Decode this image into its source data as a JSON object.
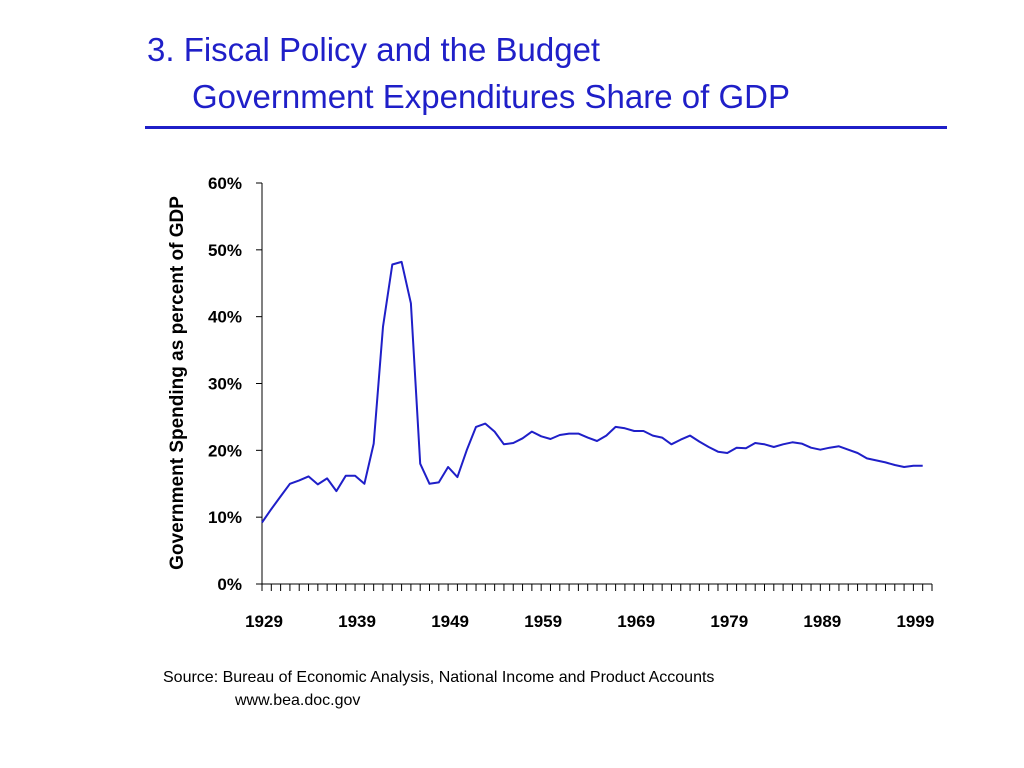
{
  "slide": {
    "title_line1": "3. Fiscal Policy and the Budget",
    "title_line2": "Government Expenditures Share of GDP",
    "source_line1": "Source: Bureau of Economic Analysis, National Income and Product Accounts",
    "source_line2": "www.bea.doc.gov",
    "accent_color": "#1f1fc8"
  },
  "chart_data": {
    "type": "line",
    "title": "",
    "xlabel": "",
    "ylabel": "Government Spending as percent of GDP",
    "xlim": [
      1929,
      2001
    ],
    "ylim": [
      0,
      60
    ],
    "y_ticks": [
      {
        "value": 0,
        "label": "0%"
      },
      {
        "value": 10,
        "label": "10%"
      },
      {
        "value": 20,
        "label": "20%"
      },
      {
        "value": 30,
        "label": "30%"
      },
      {
        "value": 40,
        "label": "40%"
      },
      {
        "value": 50,
        "label": "50%"
      },
      {
        "value": 60,
        "label": "60%"
      }
    ],
    "x_tick_labels": [
      "1929",
      "1939",
      "1949",
      "1959",
      "1969",
      "1979",
      "1989",
      "1999"
    ],
    "grid": false,
    "line_color": "#1f1fc8",
    "x": [
      1929,
      1930,
      1931,
      1932,
      1933,
      1934,
      1935,
      1936,
      1937,
      1938,
      1939,
      1940,
      1941,
      1942,
      1943,
      1944,
      1945,
      1946,
      1947,
      1948,
      1949,
      1950,
      1951,
      1952,
      1953,
      1954,
      1955,
      1956,
      1957,
      1958,
      1959,
      1960,
      1961,
      1962,
      1963,
      1964,
      1965,
      1966,
      1967,
      1968,
      1969,
      1970,
      1971,
      1972,
      1973,
      1974,
      1975,
      1976,
      1977,
      1978,
      1979,
      1980,
      1981,
      1982,
      1983,
      1984,
      1985,
      1986,
      1987,
      1988,
      1989,
      1990,
      1991,
      1992,
      1993,
      1994,
      1995,
      1996,
      1997,
      1998,
      1999,
      2000
    ],
    "series": [
      {
        "values": [
          9.2,
          11.2,
          13.1,
          15.0,
          15.5,
          16.1,
          14.9,
          15.8,
          13.9,
          16.2,
          16.2,
          15.0,
          21.0,
          38.5,
          47.8,
          48.2,
          42.0,
          18.0,
          15.0,
          15.2,
          17.5,
          16.0,
          20.0,
          23.5,
          24.0,
          22.8,
          20.9,
          21.1,
          21.8,
          22.8,
          22.1,
          21.7,
          22.3,
          22.5,
          22.5,
          21.9,
          21.4,
          22.2,
          23.5,
          23.3,
          22.9,
          22.9,
          22.2,
          21.9,
          20.9,
          21.6,
          22.2,
          21.3,
          20.5,
          19.8,
          19.6,
          20.4,
          20.3,
          21.1,
          20.9,
          20.5,
          20.9,
          21.2,
          21.0,
          20.4,
          20.1,
          20.4,
          20.6,
          20.1,
          19.6,
          18.8,
          18.5,
          18.2,
          17.8,
          17.5,
          17.7,
          17.7
        ]
      }
    ]
  }
}
